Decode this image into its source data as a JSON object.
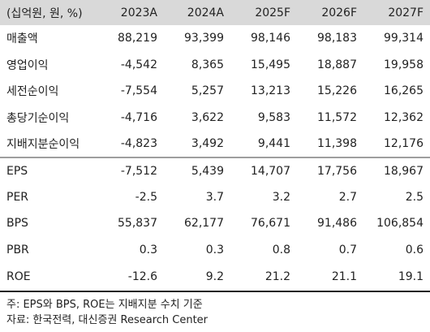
{
  "header": {
    "label": "(십억원, 원, %)",
    "years": [
      "2023A",
      "2024A",
      "2025F",
      "2026F",
      "2027F"
    ]
  },
  "rows": [
    {
      "label": "매출액",
      "values": [
        "88,219",
        "93,399",
        "98,146",
        "98,183",
        "99,314"
      ]
    },
    {
      "label": "영업이익",
      "values": [
        "-4,542",
        "8,365",
        "15,495",
        "18,887",
        "19,958"
      ]
    },
    {
      "label": "세전순이익",
      "values": [
        "-7,554",
        "5,257",
        "13,213",
        "15,226",
        "16,265"
      ]
    },
    {
      "label": "총당기순이익",
      "values": [
        "-4,716",
        "3,622",
        "9,583",
        "11,572",
        "12,362"
      ]
    },
    {
      "label": "지배지분순이익",
      "values": [
        "-4,823",
        "3,492",
        "9,441",
        "11,398",
        "12,176"
      ]
    },
    {
      "label": "EPS",
      "values": [
        "-7,512",
        "5,439",
        "14,707",
        "17,756",
        "18,967"
      ]
    },
    {
      "label": "PER",
      "values": [
        "-2.5",
        "3.7",
        "3.2",
        "2.7",
        "2.5"
      ]
    },
    {
      "label": "BPS",
      "values": [
        "55,837",
        "62,177",
        "76,671",
        "91,486",
        "106,854"
      ]
    },
    {
      "label": "PBR",
      "values": [
        "0.3",
        "0.3",
        "0.8",
        "0.7",
        "0.6"
      ]
    },
    {
      "label": "ROE",
      "values": [
        "-12.6",
        "9.2",
        "21.2",
        "21.1",
        "19.1"
      ]
    }
  ],
  "notes": {
    "note": "주: EPS와 BPS, ROE는 지배지분 수치 기준",
    "source": "자료: 한국전력, 대신증권 Research Center"
  }
}
